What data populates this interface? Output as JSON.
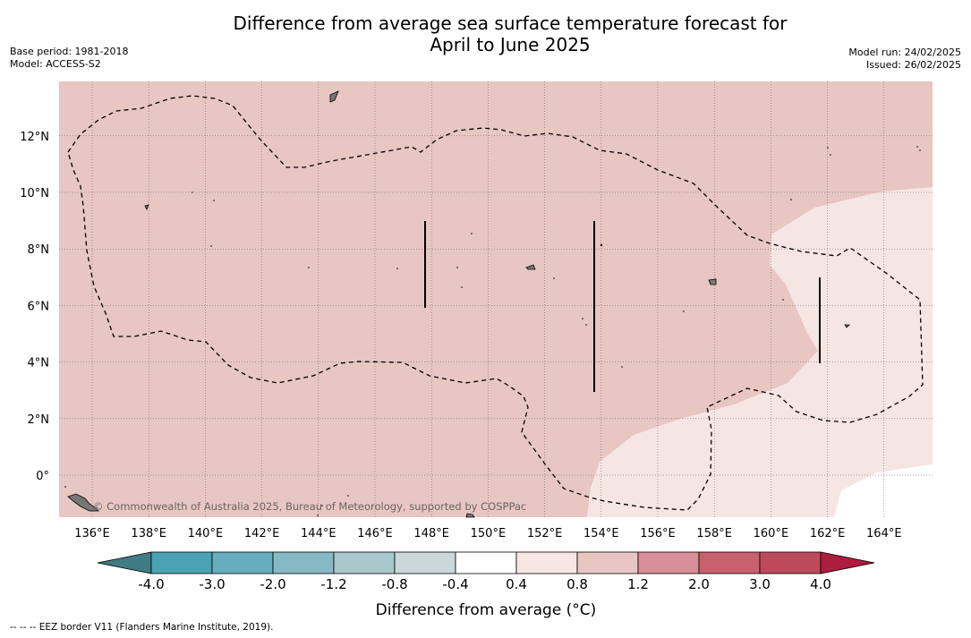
{
  "title": {
    "line1": "Difference from average sea surface temperature forecast for",
    "line2": "April to June 2025"
  },
  "meta_left": {
    "base_period": "Base period: 1981-2018",
    "model": "Model: ACCESS-S2"
  },
  "meta_right": {
    "model_run": "Model run: 24/02/2025",
    "issued": "Issued: 26/02/2025"
  },
  "map": {
    "lon_range": [
      135,
      166
    ],
    "lat_range": [
      -1.5,
      14
    ],
    "lon_ticks": [
      "136°E",
      "138°E",
      "140°E",
      "142°E",
      "144°E",
      "146°E",
      "148°E",
      "150°E",
      "152°E",
      "154°E",
      "156°E",
      "158°E",
      "160°E",
      "162°E",
      "164°E"
    ],
    "lat_ticks": [
      "12°N",
      "10°N",
      "8°N",
      "6°N",
      "4°N",
      "2°N",
      "0°"
    ],
    "dominant_anomaly_bin": "0.8 to 1.2",
    "east_anomaly_bin": "0.4 to 0.8",
    "credit": "© Commonwealth of Australia 2025, Bureau of Meteorology, supported by COSPPac"
  },
  "legend": {
    "labels": [
      "-4.0",
      "-3.0",
      "-2.0",
      "-1.2",
      "-0.8",
      "-0.4",
      "0.4",
      "0.8",
      "1.2",
      "2.0",
      "3.0",
      "4.0"
    ],
    "colors": [
      "#3f7a85",
      "#4aa3b4",
      "#66aebd",
      "#86b9c4",
      "#a8c8ce",
      "#c9d8da",
      "#ffffff",
      "#f6e6e4",
      "#e8c6c2",
      "#d88f97",
      "#c9606e",
      "#bd4a5a",
      "#ae1c3e"
    ],
    "label": "Difference from average (°C)"
  },
  "footnote": "--  --  -- EEZ border V11 (Flanders Marine Institute, 2019)."
}
